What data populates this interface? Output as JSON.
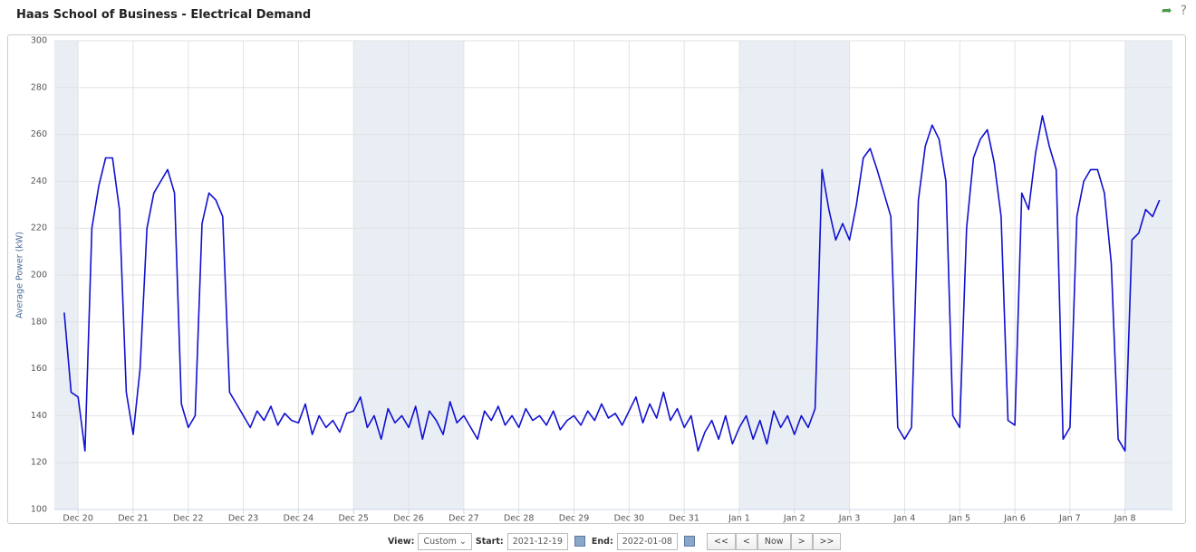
{
  "chart_data": {
    "type": "line",
    "title": "Haas School of Business - Electrical Demand",
    "y_label": "Average Power (kW)",
    "xlim": [
      -0.43,
      19.86
    ],
    "ylim": [
      100,
      300
    ],
    "yticks": [
      100,
      120,
      140,
      160,
      180,
      200,
      220,
      240,
      260,
      280,
      300
    ],
    "xticks": [
      {
        "value": 0,
        "label": "Dec 20"
      },
      {
        "value": 1,
        "label": "Dec 21"
      },
      {
        "value": 2,
        "label": "Dec 22"
      },
      {
        "value": 3,
        "label": "Dec 23"
      },
      {
        "value": 4,
        "label": "Dec 24"
      },
      {
        "value": 5,
        "label": "Dec 25"
      },
      {
        "value": 6,
        "label": "Dec 26"
      },
      {
        "value": 7,
        "label": "Dec 27"
      },
      {
        "value": 8,
        "label": "Dec 28"
      },
      {
        "value": 9,
        "label": "Dec 29"
      },
      {
        "value": 10,
        "label": "Dec 30"
      },
      {
        "value": 11,
        "label": "Dec 31"
      },
      {
        "value": 12,
        "label": "Jan 1"
      },
      {
        "value": 13,
        "label": "Jan 2"
      },
      {
        "value": 14,
        "label": "Jan 3"
      },
      {
        "value": 15,
        "label": "Jan 4"
      },
      {
        "value": 16,
        "label": "Jan 5"
      },
      {
        "value": 17,
        "label": "Jan 6"
      },
      {
        "value": 18,
        "label": "Jan 7"
      },
      {
        "value": 19,
        "label": "Jan 8"
      }
    ],
    "grid": true,
    "plot_bands": [
      [
        -0.43,
        0
      ],
      [
        5,
        7
      ],
      [
        12,
        14
      ],
      [
        19,
        19.86
      ]
    ],
    "band_color": "#e8eef4",
    "series": [
      {
        "color": "#1010d0",
        "x": [
          -0.25,
          -0.125,
          0,
          0.125,
          0.25,
          0.375,
          0.5,
          0.625,
          0.75,
          0.875,
          1,
          1.125,
          1.25,
          1.375,
          1.5,
          1.625,
          1.75,
          1.875,
          2,
          2.125,
          2.25,
          2.375,
          2.5,
          2.625,
          2.75,
          2.875,
          3,
          3.125,
          3.25,
          3.375,
          3.5,
          3.625,
          3.75,
          3.875,
          4,
          4.125,
          4.25,
          4.375,
          4.5,
          4.625,
          4.75,
          4.875,
          5,
          5.125,
          5.25,
          5.375,
          5.5,
          5.625,
          5.75,
          5.875,
          6,
          6.125,
          6.25,
          6.375,
          6.5,
          6.625,
          6.75,
          6.875,
          7,
          7.125,
          7.25,
          7.375,
          7.5,
          7.625,
          7.75,
          7.875,
          8,
          8.125,
          8.25,
          8.375,
          8.5,
          8.625,
          8.75,
          8.875,
          9,
          9.125,
          9.25,
          9.375,
          9.5,
          9.625,
          9.75,
          9.875,
          10,
          10.125,
          10.25,
          10.375,
          10.5,
          10.625,
          10.75,
          10.875,
          11,
          11.125,
          11.25,
          11.375,
          11.5,
          11.625,
          11.75,
          11.875,
          12,
          12.125,
          12.25,
          12.375,
          12.5,
          12.625,
          12.75,
          12.875,
          13,
          13.125,
          13.25,
          13.375,
          13.5,
          13.625,
          13.75,
          13.875,
          14,
          14.125,
          14.25,
          14.375,
          14.5,
          14.625,
          14.75,
          14.875,
          15,
          15.125,
          15.25,
          15.375,
          15.5,
          15.625,
          15.75,
          15.875,
          16,
          16.125,
          16.25,
          16.375,
          16.5,
          16.625,
          16.75,
          16.875,
          17,
          17.125,
          17.25,
          17.375,
          17.5,
          17.625,
          17.75,
          17.875,
          18,
          18.125,
          18.25,
          18.375,
          18.5,
          18.625,
          18.75,
          18.875,
          19,
          19.125,
          19.25,
          19.375,
          19.5,
          19.625
        ],
        "values": [
          184,
          150,
          148,
          125,
          220,
          238,
          250,
          250,
          228,
          150,
          132,
          160,
          220,
          235,
          240,
          245,
          235,
          145,
          135,
          140,
          222,
          235,
          232,
          225,
          150,
          145,
          140,
          135,
          142,
          138,
          144,
          136,
          141,
          138,
          137,
          145,
          132,
          140,
          135,
          138,
          133,
          141,
          142,
          148,
          135,
          140,
          130,
          143,
          137,
          140,
          135,
          144,
          130,
          142,
          138,
          132,
          146,
          137,
          140,
          135,
          130,
          142,
          138,
          144,
          136,
          140,
          135,
          143,
          138,
          140,
          136,
          142,
          134,
          138,
          140,
          136,
          142,
          138,
          145,
          139,
          141,
          136,
          142,
          148,
          137,
          145,
          139,
          150,
          138,
          143,
          135,
          140,
          125,
          133,
          138,
          130,
          140,
          128,
          135,
          140,
          130,
          138,
          128,
          142,
          135,
          140,
          132,
          140,
          135,
          143,
          245,
          228,
          215,
          222,
          215,
          230,
          250,
          254,
          245,
          235,
          225,
          135,
          130,
          135,
          232,
          255,
          264,
          258,
          240,
          140,
          135,
          220,
          250,
          258,
          262,
          248,
          225,
          138,
          136,
          235,
          228,
          252,
          268,
          255,
          245,
          130,
          135,
          225,
          240,
          245,
          245,
          235,
          205,
          130,
          125,
          215,
          218,
          228,
          225,
          232
        ]
      }
    ]
  },
  "help": "?",
  "controls": {
    "view_label": "View:",
    "view": "Custom",
    "start_label": "Start:",
    "start": "2021-12-19",
    "end_label": "End:",
    "end": "2022-01-08",
    "buttons": [
      "<<",
      "<",
      "Now",
      ">",
      ">>"
    ]
  }
}
